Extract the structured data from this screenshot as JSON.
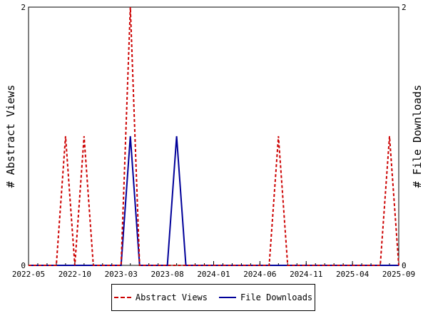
{
  "chart_data": {
    "type": "line",
    "xlabel": "",
    "ylabel_left": "# Abstract Views",
    "ylabel_right": "# File Downloads",
    "x_ticks": [
      "2022-05",
      "2022-10",
      "2023-03",
      "2023-08",
      "2024-01",
      "2024-06",
      "2024-11",
      "2025-04",
      "2025-09"
    ],
    "x_months": [
      "2022-05",
      "2022-06",
      "2022-07",
      "2022-08",
      "2022-09",
      "2022-10",
      "2022-11",
      "2022-12",
      "2023-01",
      "2023-02",
      "2023-03",
      "2023-04",
      "2023-05",
      "2023-06",
      "2023-07",
      "2023-08",
      "2023-09",
      "2023-10",
      "2023-11",
      "2023-12",
      "2024-01",
      "2024-02",
      "2024-03",
      "2024-04",
      "2024-05",
      "2024-06",
      "2024-07",
      "2024-08",
      "2024-09",
      "2024-10",
      "2024-11",
      "2024-12",
      "2025-01",
      "2025-02",
      "2025-03",
      "2025-04",
      "2025-05",
      "2025-06",
      "2025-07",
      "2025-08",
      "2025-09"
    ],
    "ylim_left": [
      0,
      2
    ],
    "ylim_right": [
      0,
      2
    ],
    "y_ticks_left": [
      "0",
      "2"
    ],
    "y_ticks_right": [
      "0",
      "2"
    ],
    "legend_placement": "bottom",
    "series": [
      {
        "name": "Abstract Views",
        "axis": "left",
        "color": "#cc0000",
        "style": "dashed",
        "values": [
          0,
          0,
          0,
          0,
          1,
          0,
          1,
          0,
          0,
          0,
          0,
          2,
          0,
          0,
          0,
          0,
          0,
          0,
          0,
          0,
          0,
          0,
          0,
          0,
          0,
          0,
          0,
          1,
          0,
          0,
          0,
          0,
          0,
          0,
          0,
          0,
          0,
          0,
          0,
          1,
          0
        ]
      },
      {
        "name": "File Downloads",
        "axis": "right",
        "color": "#000099",
        "style": "solid",
        "values": [
          0,
          0,
          0,
          0,
          0,
          0,
          0,
          0,
          0,
          0,
          0,
          1,
          0,
          0,
          0,
          0,
          1,
          0,
          0,
          0,
          0,
          0,
          0,
          0,
          0,
          0,
          0,
          0,
          0,
          0,
          0,
          0,
          0,
          0,
          0,
          0,
          0,
          0,
          0,
          0,
          0
        ]
      }
    ]
  }
}
